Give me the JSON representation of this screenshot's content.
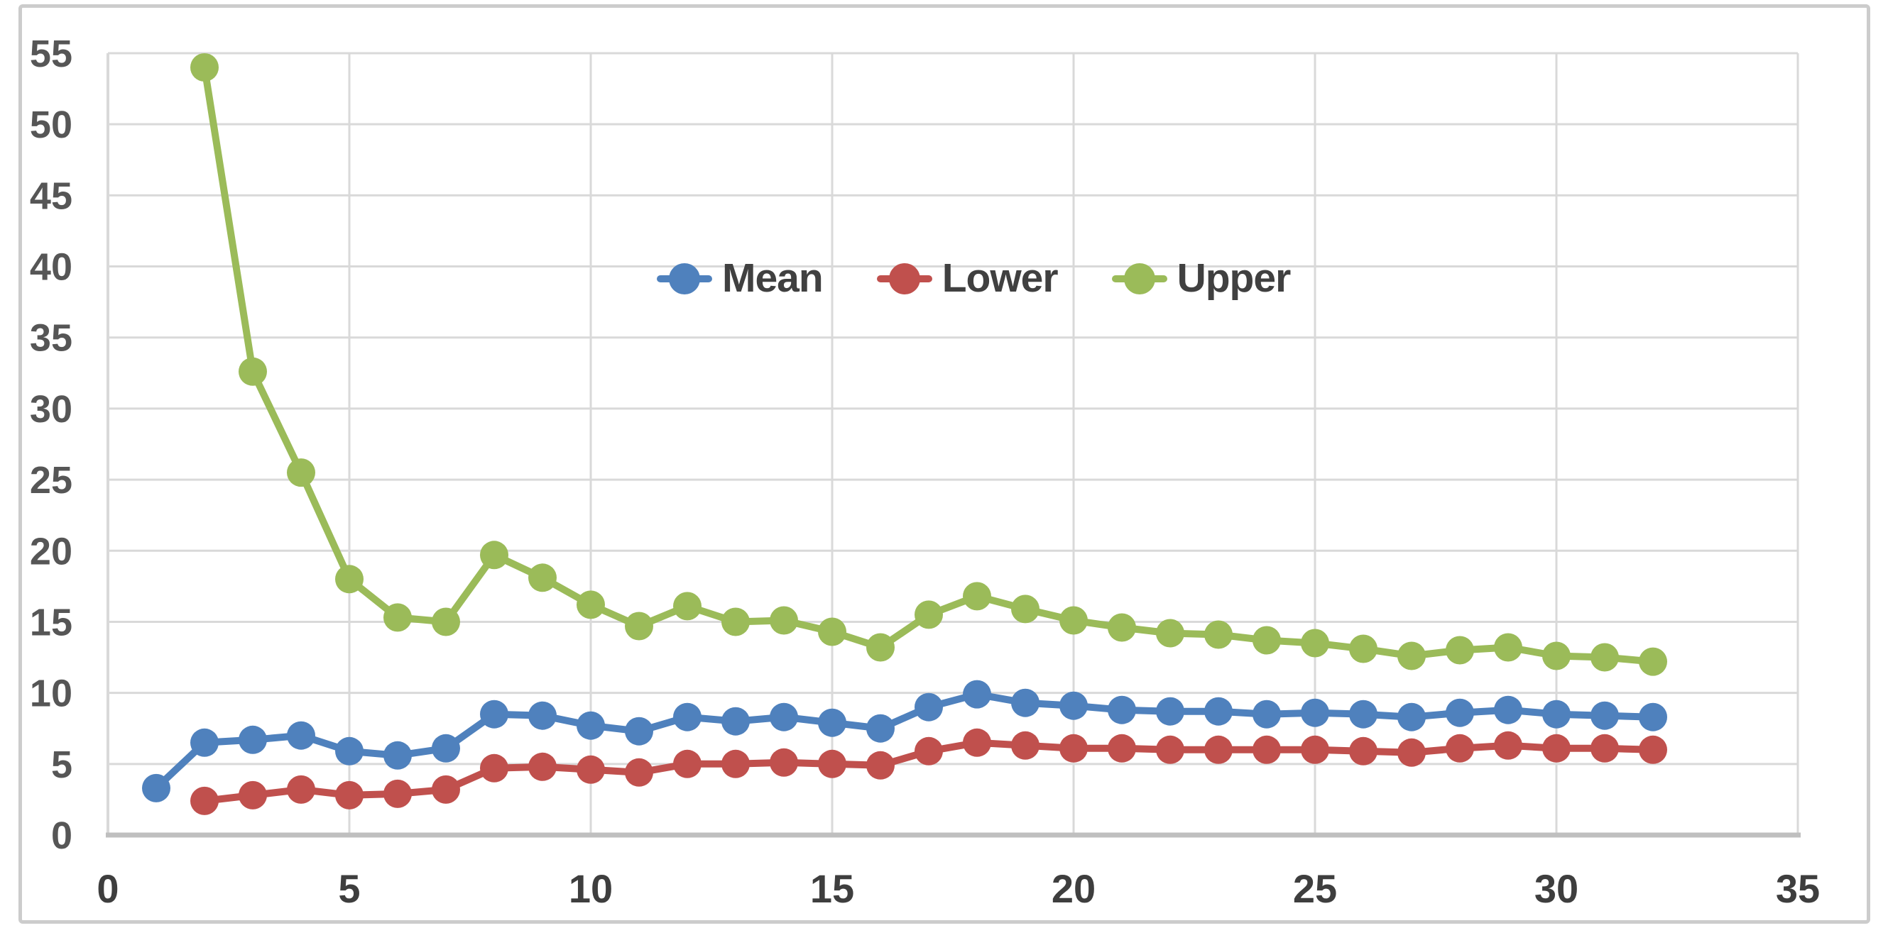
{
  "figure": {
    "background": "#ffffff",
    "border_color": "#cccccc"
  },
  "style": {
    "gridline_color": "#d9d9d9",
    "axis_line_color": "#bfbfbf",
    "x_tick_label_color": "#3e3e3e",
    "y_tick_label_color": "#565656",
    "legend_text_color": "#404040"
  },
  "legend": {
    "items": [
      {
        "label": "Mean"
      },
      {
        "label": "Lower"
      },
      {
        "label": "Upper"
      }
    ]
  },
  "chart_data": {
    "type": "line",
    "title": "",
    "xlabel": "",
    "ylabel": "",
    "xlim": [
      0,
      35
    ],
    "ylim": [
      0,
      55
    ],
    "x_ticks": [
      0,
      5,
      10,
      15,
      20,
      25,
      30,
      35
    ],
    "y_ticks": [
      0,
      5,
      10,
      15,
      20,
      25,
      30,
      35,
      40,
      45,
      50,
      55
    ],
    "grid": true,
    "legend_position": "top-center-inside",
    "marker": "circle",
    "series": [
      {
        "name": "Mean",
        "color": "#4F81BD",
        "x": [
          1,
          2,
          3,
          4,
          5,
          6,
          7,
          8,
          9,
          10,
          11,
          12,
          13,
          14,
          15,
          16,
          17,
          18,
          19,
          20,
          21,
          22,
          23,
          24,
          25,
          26,
          27,
          28,
          29,
          30,
          31,
          32
        ],
        "values": [
          3.3,
          6.5,
          6.7,
          7.0,
          5.9,
          5.6,
          6.1,
          8.5,
          8.4,
          7.7,
          7.3,
          8.3,
          8.0,
          8.3,
          7.9,
          7.5,
          9.0,
          9.9,
          9.3,
          9.1,
          8.8,
          8.7,
          8.7,
          8.5,
          8.6,
          8.5,
          8.3,
          8.6,
          8.8,
          8.5,
          8.4,
          8.3
        ]
      },
      {
        "name": "Lower",
        "color": "#C0504D",
        "x": [
          2,
          3,
          4,
          5,
          6,
          7,
          8,
          9,
          10,
          11,
          12,
          13,
          14,
          15,
          16,
          17,
          18,
          19,
          20,
          21,
          22,
          23,
          24,
          25,
          26,
          27,
          28,
          29,
          30,
          31,
          32
        ],
        "values": [
          2.4,
          2.8,
          3.2,
          2.8,
          2.9,
          3.2,
          4.7,
          4.8,
          4.6,
          4.4,
          5.0,
          5.0,
          5.1,
          5.0,
          4.9,
          5.9,
          6.5,
          6.3,
          6.1,
          6.1,
          6.0,
          6.0,
          6.0,
          6.0,
          5.9,
          5.8,
          6.1,
          6.3,
          6.1,
          6.1,
          6.0
        ]
      },
      {
        "name": "Upper",
        "color": "#9BBB59",
        "x": [
          2,
          3,
          4,
          5,
          6,
          7,
          8,
          9,
          10,
          11,
          12,
          13,
          14,
          15,
          16,
          17,
          18,
          19,
          20,
          21,
          22,
          23,
          24,
          25,
          26,
          27,
          28,
          29,
          30,
          31,
          32
        ],
        "values": [
          54.0,
          32.6,
          25.5,
          18.0,
          15.3,
          15.0,
          19.7,
          18.1,
          16.2,
          14.7,
          16.1,
          15.0,
          15.1,
          14.3,
          13.2,
          15.5,
          16.8,
          15.9,
          15.1,
          14.6,
          14.2,
          14.1,
          13.7,
          13.5,
          13.1,
          12.6,
          13.0,
          13.2,
          12.6,
          12.5,
          12.2
        ]
      }
    ]
  }
}
